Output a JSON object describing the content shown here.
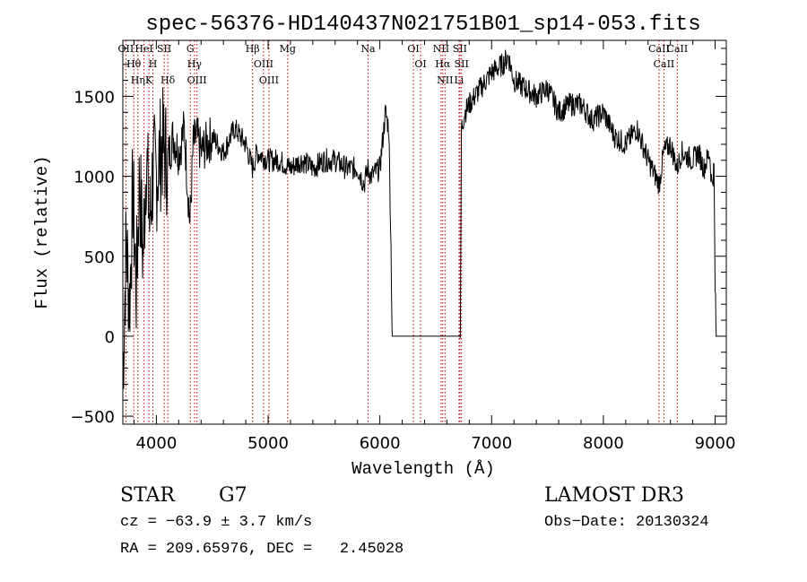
{
  "chart_data": {
    "type": "line",
    "title": "spec-56376-HD140437N021751B01_sp14-053.fits",
    "xlabel": "Wavelength (Å)",
    "ylabel": "Flux (relative)",
    "xlim": [
      3700,
      9100
    ],
    "ylim": [
      -550,
      1850
    ],
    "xticks": [
      4000,
      5000,
      6000,
      7000,
      8000,
      9000
    ],
    "xtick_labels": [
      "4000",
      "5000",
      "6000",
      "7000",
      "8000",
      "9000"
    ],
    "yticks": [
      -500,
      0,
      500,
      1000,
      1500
    ],
    "ytick_labels": [
      "−500",
      "0",
      "500",
      "1000",
      "1500"
    ],
    "series": [
      {
        "name": "flux",
        "x": [
          3700,
          3730,
          3760,
          3790,
          3820,
          3850,
          3880,
          3910,
          3940,
          3970,
          4000,
          4050,
          4100,
          4150,
          4200,
          4250,
          4300,
          4330,
          4360,
          4400,
          4500,
          4600,
          4700,
          4800,
          4860,
          4900,
          5000,
          5100,
          5200,
          5300,
          5400,
          5500,
          5600,
          5700,
          5800,
          5860,
          5890,
          5920,
          6000,
          6050,
          6080,
          6100,
          6110,
          6200,
          6300,
          6400,
          6500,
          6600,
          6700,
          6720,
          6730,
          6760,
          6800,
          6900,
          7000,
          7100,
          7150,
          7200,
          7300,
          7400,
          7500,
          7600,
          7700,
          7800,
          7900,
          8000,
          8100,
          8200,
          8300,
          8400,
          8500,
          8540,
          8600,
          8660,
          8700,
          8800,
          8850,
          8900,
          8950,
          8970,
          8990,
          9000,
          9010
        ],
        "y": [
          -250,
          600,
          200,
          900,
          300,
          1000,
          500,
          1150,
          700,
          1050,
          1000,
          1200,
          1100,
          1250,
          1150,
          1300,
          700,
          1200,
          1250,
          1150,
          1250,
          1150,
          1300,
          1200,
          1050,
          1150,
          1100,
          1100,
          1050,
          1100,
          1050,
          1100,
          1100,
          1050,
          1050,
          950,
          1050,
          1000,
          1050,
          1400,
          1300,
          550,
          0,
          0,
          0,
          0,
          0,
          0,
          0,
          0,
          1300,
          1400,
          1450,
          1550,
          1650,
          1700,
          1750,
          1600,
          1550,
          1500,
          1550,
          1400,
          1450,
          1450,
          1350,
          1400,
          1250,
          1200,
          1300,
          1100,
          950,
          1150,
          1200,
          1050,
          1150,
          1100,
          1150,
          1050,
          1150,
          950,
          1050,
          300,
          0
        ]
      }
    ],
    "line_markers": [
      {
        "label": "OII",
        "x": 3727
      },
      {
        "label": "Hθ",
        "x": 3798
      },
      {
        "label": "Hη",
        "x": 3835
      },
      {
        "label": "HeI",
        "x": 3889
      },
      {
        "label": "K",
        "x": 3934
      },
      {
        "label": "H",
        "x": 3969
      },
      {
        "label": "SII",
        "x": 4070
      },
      {
        "label": "Hδ",
        "x": 4102
      },
      {
        "label": "G",
        "x": 4304
      },
      {
        "label": "Hγ",
        "x": 4341
      },
      {
        "label": "OIII",
        "x": 4363
      },
      {
        "label": "Hβ",
        "x": 4861
      },
      {
        "label": "OIII",
        "x": 4959
      },
      {
        "label": "OIII",
        "x": 5007
      },
      {
        "label": "Mg",
        "x": 5175
      },
      {
        "label": "Na",
        "x": 5894
      },
      {
        "label": "OI",
        "x": 6300
      },
      {
        "label": "OI",
        "x": 6364
      },
      {
        "label": "NII",
        "x": 6548
      },
      {
        "label": "Hα",
        "x": 6563
      },
      {
        "label": "NII",
        "x": 6583
      },
      {
        "label": "Li",
        "x": 6708
      },
      {
        "label": "SII",
        "x": 6716
      },
      {
        "label": "SII",
        "x": 6731
      },
      {
        "label": "CaII",
        "x": 8498
      },
      {
        "label": "CaII",
        "x": 8542
      },
      {
        "label": "CaII",
        "x": 8662
      }
    ],
    "line_color": "#000000",
    "marker_color": "#c00000",
    "grid": false
  },
  "info": {
    "object_class": "STAR",
    "subclass": "G7",
    "survey": "LAMOST DR3",
    "cz": "cz = −63.9 ± 3.7 km/s",
    "obs_date": "Obs−Date: 20130324",
    "coords": "RA = 209.65976, DEC =   2.45028"
  }
}
